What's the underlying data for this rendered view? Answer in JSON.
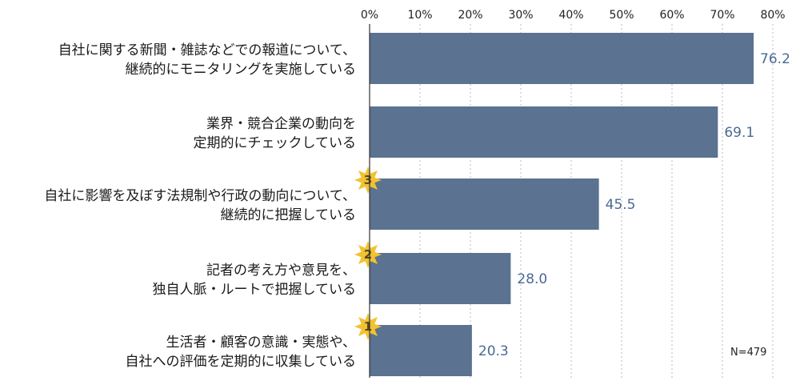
{
  "chart_data": {
    "type": "bar",
    "orientation": "horizontal",
    "categories": [
      [
        "自社に関する新聞・雑誌などでの報道について、",
        "継続的にモニタリングを実施している"
      ],
      [
        "業界・競合企業の動向を",
        "定期的にチェックしている"
      ],
      [
        "自社に影響を及ぼす法規制や行政の動向について、",
        "継続的に把握している"
      ],
      [
        "記者の考え方や意見を、",
        "独自人脈・ルートで把握している"
      ],
      [
        "生活者・顧客の意識・実態や、",
        "自社への評価を定期的に収集している"
      ]
    ],
    "values": [
      76.2,
      69.1,
      45.5,
      28.0,
      20.3
    ],
    "value_labels": [
      "76.2",
      "69.1",
      "45.5",
      "28.0",
      "20.3"
    ],
    "ranks": [
      "",
      "",
      "3",
      "2",
      "1"
    ],
    "xlim": [
      0,
      80
    ],
    "xticks": [
      "0%",
      "10%",
      "20%",
      "30%",
      "40%",
      "50%",
      "60%",
      "70%",
      "80%"
    ],
    "xlabel": "",
    "ylabel": "",
    "note": "N=479",
    "grid": true,
    "colors": {
      "bar": "#5b7291",
      "value": "#4a6a93",
      "grid": "#bbbbbb",
      "axis": "#333333",
      "star": "#f1c232"
    }
  }
}
